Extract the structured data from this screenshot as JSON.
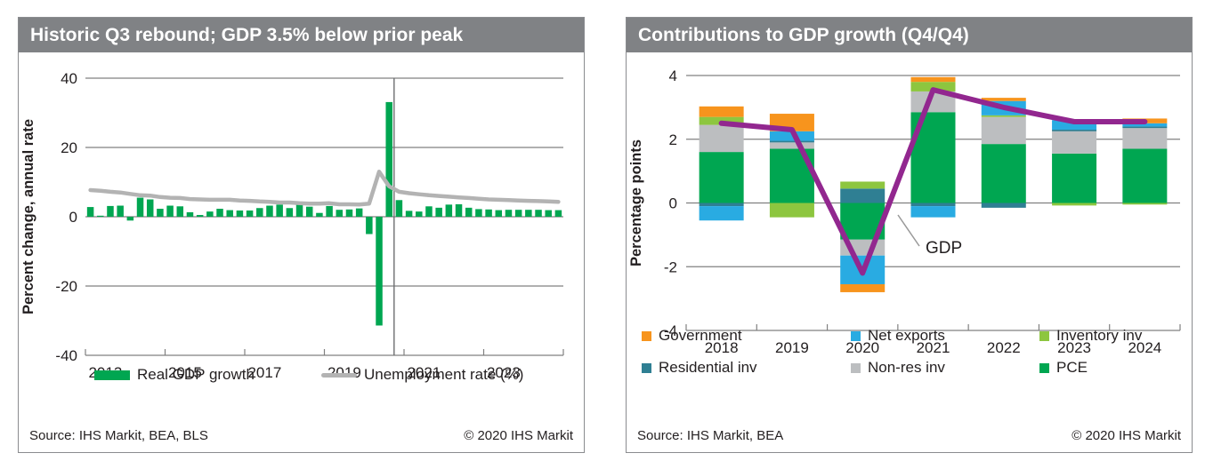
{
  "panels": {
    "left": {
      "title": "Historic Q3 rebound; GDP 3.5% below prior peak",
      "source": "Source: IHS Markit, BEA, BLS",
      "copyright": "© 2020 IHS Markit"
    },
    "right": {
      "title": "Contributions to GDP growth (Q4/Q4)",
      "source": "Source: IHS Markit, BEA",
      "copyright": "© 2020 IHS Markit"
    }
  },
  "colors": {
    "title_bar": "#808285",
    "grid": "#808080",
    "divider": "#6d6e71",
    "annotation_text": "#6d6e71",
    "leader_line": "#999999"
  },
  "chart_data": [
    {
      "type": "bar",
      "title": "Historic Q3 rebound; GDP 3.5% below prior peak",
      "ylabel": "Percent change, annual rate",
      "ylim": [
        -40,
        40
      ],
      "yticks": [
        40,
        20,
        0,
        -20,
        -40
      ],
      "x_start_year": 2013,
      "quarters_per_year": 4,
      "xtick_labels": [
        "2013",
        "2015",
        "2017",
        "2019",
        "2021",
        "2023"
      ],
      "divider_after_quarter_index": 30,
      "series": [
        {
          "name": "Real GDP growth",
          "type": "bar",
          "color": "#00a651",
          "values": [
            2.8,
            0.3,
            3.1,
            3.2,
            -1.1,
            5.5,
            5.0,
            2.3,
            3.2,
            3.0,
            1.3,
            0.5,
            1.5,
            2.3,
            1.9,
            1.8,
            1.8,
            2.5,
            3.2,
            3.5,
            2.5,
            3.5,
            2.9,
            1.1,
            3.1,
            2.0,
            2.1,
            2.4,
            -5.0,
            -31.4,
            33.1,
            4.8,
            1.7,
            1.5,
            3.0,
            2.6,
            3.5,
            3.6,
            2.6,
            2.2,
            2.1,
            1.9,
            2.0,
            2.0,
            2.0,
            2.0,
            1.9,
            1.9
          ]
        },
        {
          "name": "Unemployment rate (%)",
          "type": "line",
          "color": "#b3b3b3",
          "values": [
            7.7,
            7.5,
            7.2,
            7.0,
            6.6,
            6.2,
            6.1,
            5.7,
            5.5,
            5.4,
            5.1,
            5.0,
            4.9,
            4.9,
            4.9,
            4.7,
            4.6,
            4.4,
            4.3,
            4.1,
            4.1,
            3.9,
            3.8,
            3.8,
            3.9,
            3.6,
            3.6,
            3.5,
            3.8,
            13.0,
            8.8,
            7.2,
            6.8,
            6.5,
            6.2,
            6.0,
            5.8,
            5.6,
            5.4,
            5.2,
            5.0,
            4.9,
            4.8,
            4.7,
            4.6,
            4.5,
            4.4,
            4.3
          ]
        }
      ],
      "legend": [
        "Real GDP growth",
        "Unemployment rate (%)"
      ],
      "grid": "horizontal",
      "legend_position": "bottom"
    },
    {
      "type": "stacked-bar-with-line",
      "title": "Contributions to GDP growth (Q4/Q4)",
      "ylabel": "Percentage points",
      "ylim": [
        -4,
        4
      ],
      "yticks": [
        4,
        2,
        0,
        -2,
        -4
      ],
      "categories": [
        "2018",
        "2019",
        "2020",
        "2021",
        "2022",
        "2023",
        "2024"
      ],
      "series": [
        {
          "name": "PCE",
          "color": "#00a651",
          "values": [
            1.6,
            1.7,
            -1.15,
            2.85,
            1.85,
            1.55,
            1.7
          ]
        },
        {
          "name": "Non-res inv",
          "color": "#bcbec0",
          "values": [
            0.85,
            0.2,
            -0.5,
            0.65,
            0.85,
            0.7,
            0.65
          ]
        },
        {
          "name": "Residential inv",
          "color": "#2f7f93",
          "values": [
            -0.1,
            0.05,
            0.45,
            -0.1,
            -0.15,
            0.05,
            0.05
          ]
        },
        {
          "name": "Inventory inv",
          "color": "#8dc63f",
          "values": [
            0.25,
            -0.45,
            0.22,
            0.3,
            0.05,
            -0.08,
            -0.05
          ]
        },
        {
          "name": "Net exports",
          "color": "#29abe2",
          "values": [
            -0.45,
            0.3,
            -0.9,
            -0.35,
            0.45,
            0.3,
            0.1
          ]
        },
        {
          "name": "Government",
          "color": "#f7941d",
          "values": [
            0.33,
            0.55,
            -0.25,
            0.15,
            0.1,
            0.0,
            0.15
          ]
        }
      ],
      "line_series": {
        "name": "GDP",
        "color": "#92278f",
        "values": [
          2.5,
          2.3,
          -2.2,
          3.55,
          3.0,
          2.55,
          2.55
        ]
      },
      "annotation": {
        "text": "GDP"
      },
      "legend_order": [
        "Government",
        "Net exports",
        "Inventory inv",
        "Residential inv",
        "Non-res inv",
        "PCE"
      ],
      "grid": "horizontal",
      "legend_position": "bottom"
    }
  ]
}
